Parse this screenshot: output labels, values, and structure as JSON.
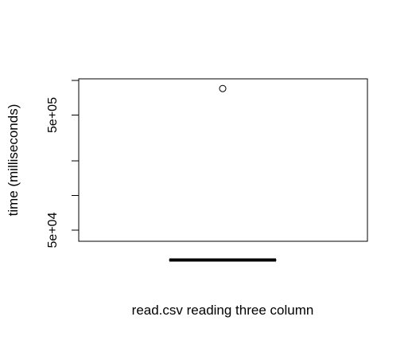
{
  "chart_data": {
    "type": "boxplot",
    "title": "",
    "xlabel": "read.csv reading three column",
    "ylabel": "time (milliseconds)",
    "y_scale": "log",
    "ylim": [
      25000,
      1050000
    ],
    "grid": false,
    "y_tick_labels": [
      {
        "value": 50000,
        "label": "5e+04"
      },
      {
        "value": 500000,
        "label": "5e+05"
      }
    ],
    "y_minor_ticks": [
      100000,
      200000,
      1000000
    ],
    "series": [
      {
        "median": 27500,
        "q1": 27400,
        "q3": 27600,
        "whisker_low": 27300,
        "whisker_high": 27700,
        "outliers": [
          850000
        ]
      }
    ]
  }
}
